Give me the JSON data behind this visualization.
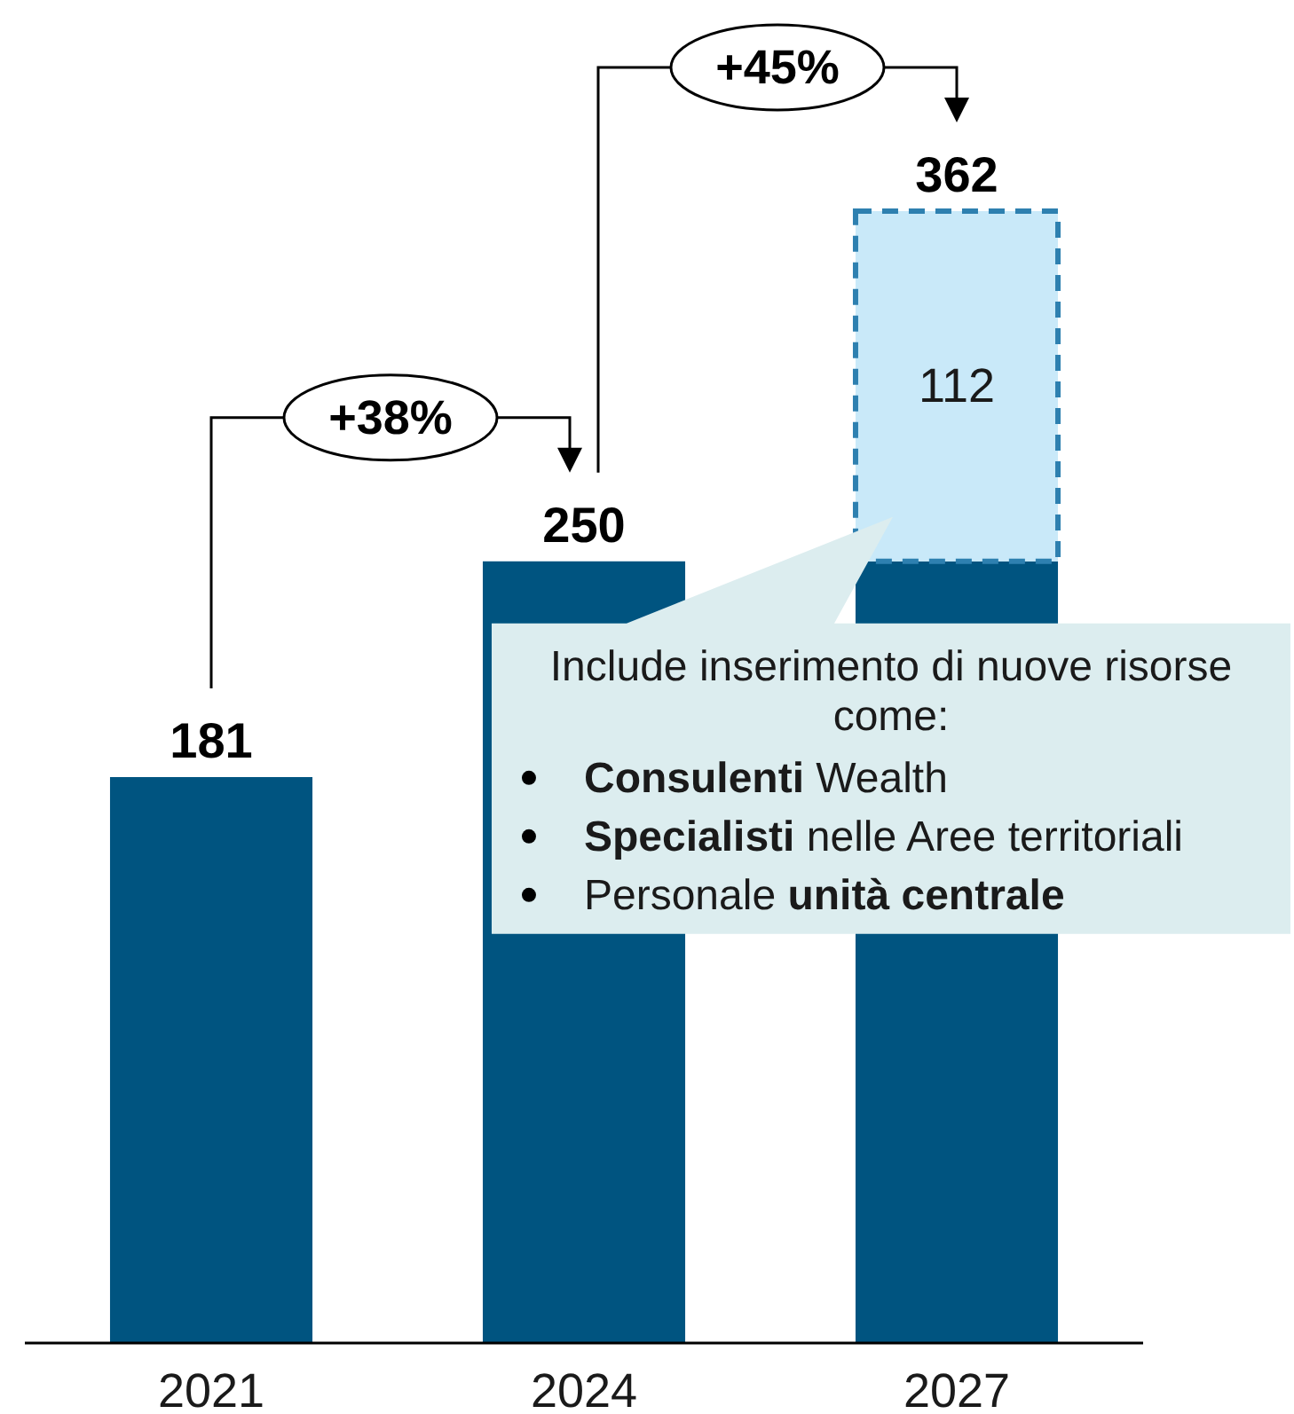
{
  "chart_data": {
    "type": "bar",
    "categories": [
      "2021",
      "2024",
      "2027"
    ],
    "stacked": true,
    "series": [
      {
        "color": "#005480",
        "values": [
          181,
          250,
          250
        ]
      },
      {
        "color": "#c9e9f9",
        "values": [
          null,
          null,
          112
        ],
        "value_labels": [
          null,
          null,
          "112"
        ],
        "line_style": "dashed"
      }
    ],
    "totals": [
      "181",
      "250",
      "362"
    ],
    "annotations": [
      "+38%",
      "+45%",
      "Include inserimento di nuove risorse come:",
      "Consulenti Wealth",
      "Specialisti nelle Aree territoriali",
      "Personale unità centrale"
    ]
  }
}
